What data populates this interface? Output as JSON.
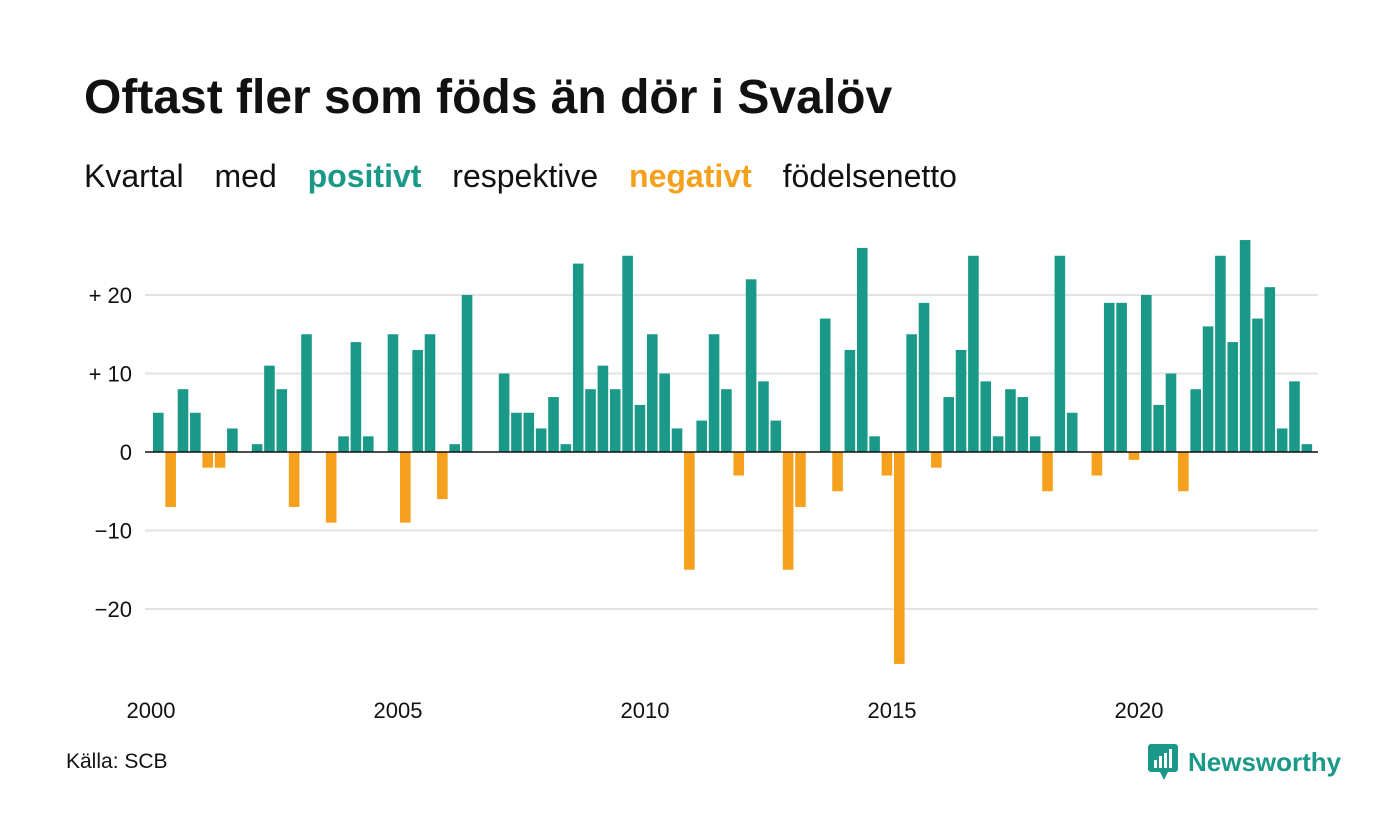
{
  "title": "Oftast fler som föds än dör i Svalöv",
  "subtitle": {
    "part1": "Kvartal",
    "part2": "med",
    "positive": "positivt",
    "part3": "respektive",
    "negative": "negativt",
    "part4": "födelsenetto"
  },
  "source": "Källa: SCB",
  "logo": {
    "text": "Newsworthy",
    "icon": "newsworthy-chart-icon"
  },
  "colors": {
    "positive": "#1a9988",
    "negative": "#f5a11d",
    "grid": "#e3e3e3",
    "zero": "#111111"
  },
  "chart_data": {
    "type": "bar",
    "x_start": "2000 Q1",
    "xticks": [
      2000,
      2005,
      2010,
      2015,
      2020
    ],
    "yticks": [
      {
        "value": 20,
        "label": "+ 20"
      },
      {
        "value": 10,
        "label": "+ 10"
      },
      {
        "value": 0,
        "label": "0"
      },
      {
        "value": -10,
        "label": "−10"
      },
      {
        "value": -20,
        "label": "−20"
      }
    ],
    "ylim": [
      -27,
      27
    ],
    "grid": true,
    "values": [
      5,
      -7,
      8,
      5,
      -2,
      -2,
      3,
      0,
      1,
      11,
      8,
      -7,
      15,
      0,
      -9,
      2,
      14,
      2,
      0,
      15,
      -9,
      13,
      15,
      -6,
      1,
      20,
      0,
      0,
      10,
      5,
      5,
      3,
      7,
      1,
      24,
      8,
      11,
      8,
      25,
      6,
      15,
      10,
      3,
      -15,
      4,
      15,
      8,
      -3,
      22,
      9,
      4,
      -15,
      -7,
      0,
      17,
      -5,
      13,
      26,
      2,
      -3,
      -27,
      15,
      19,
      -2,
      7,
      13,
      25,
      9,
      2,
      8,
      7,
      2,
      -5,
      25,
      5,
      0,
      -3,
      19,
      19,
      -1,
      20,
      6,
      10,
      -5,
      8,
      16,
      25,
      14,
      27,
      17,
      21,
      3,
      9,
      1
    ]
  }
}
